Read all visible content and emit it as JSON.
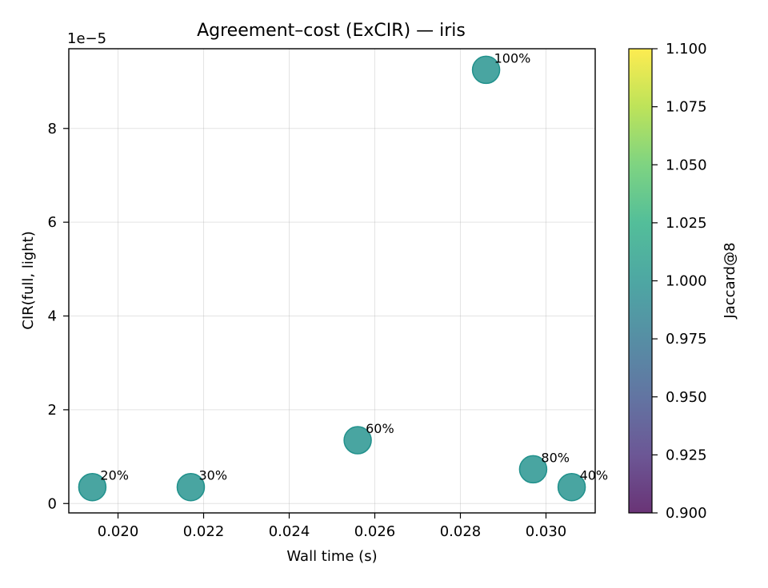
{
  "chart_data": {
    "type": "scatter",
    "title": "Agreement–cost (ExCIR) — iris",
    "xlabel": "Wall time (s)",
    "ylabel": "CIR(full, light)",
    "y_offset_label": "1e−5",
    "xlim": [
      0.01885,
      0.03115
    ],
    "ylim": [
      -0.2,
      9.7
    ],
    "y_scale_exponent": -5,
    "grid": true,
    "xticks": [
      0.02,
      0.022,
      0.024,
      0.026,
      0.028,
      0.03
    ],
    "xtick_labels": [
      "0.020",
      "0.022",
      "0.024",
      "0.026",
      "0.028",
      "0.030"
    ],
    "yticks": [
      0,
      2,
      4,
      6,
      8
    ],
    "ytick_labels": [
      "0",
      "2",
      "4",
      "6",
      "8"
    ],
    "points": [
      {
        "x": 0.0194,
        "y": 0.35,
        "label": "20%",
        "jaccard": 1.0
      },
      {
        "x": 0.0217,
        "y": 0.35,
        "label": "30%",
        "jaccard": 1.0
      },
      {
        "x": 0.0256,
        "y": 1.35,
        "label": "60%",
        "jaccard": 1.0
      },
      {
        "x": 0.0286,
        "y": 9.25,
        "label": "100%",
        "jaccard": 1.0
      },
      {
        "x": 0.0297,
        "y": 0.73,
        "label": "80%",
        "jaccard": 1.0
      },
      {
        "x": 0.0306,
        "y": 0.35,
        "label": "40%",
        "jaccard": 1.0
      }
    ],
    "point_color": "#21918c",
    "colorbar": {
      "label": "Jaccard@8",
      "colormap": "viridis",
      "range": [
        0.9,
        1.1
      ],
      "ticks": [
        0.9,
        0.925,
        0.95,
        0.975,
        1.0,
        1.025,
        1.05,
        1.075,
        1.1
      ],
      "tick_labels": [
        "0.900",
        "0.925",
        "0.950",
        "0.975",
        "1.000",
        "1.025",
        "1.050",
        "1.075",
        "1.100"
      ]
    }
  }
}
